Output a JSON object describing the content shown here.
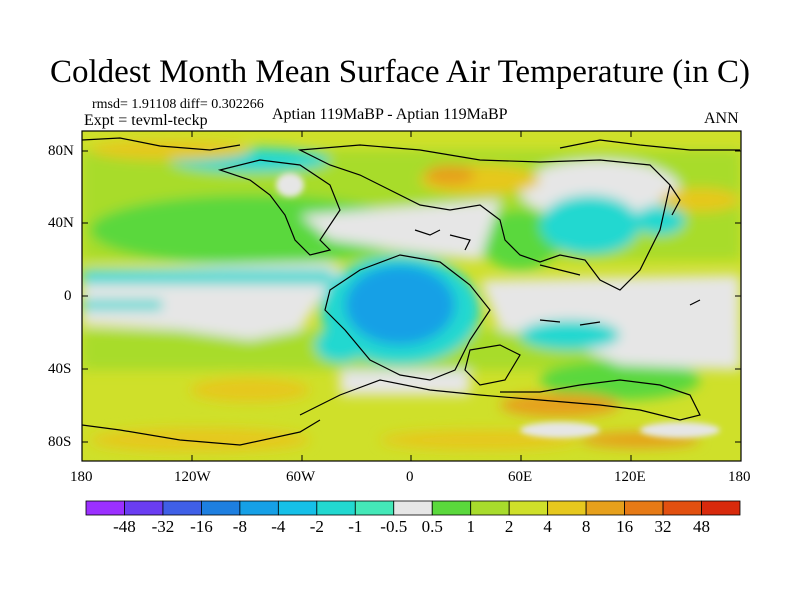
{
  "header": {
    "title": "Coldest Month Mean Surface Air Temperature (in C)",
    "stats": "rmsd= 1.91108 diff= 0.302266",
    "expt": "Expt = tevml-teckp",
    "comparison": "Aptian   119MaBP - Aptian   119MaBP",
    "period": "ANN"
  },
  "map": {
    "y_ticks": [
      "80N",
      "40N",
      "0",
      "40S",
      "80S"
    ],
    "x_ticks": [
      "180",
      "120W",
      "60W",
      "0",
      "60E",
      "120E",
      "180"
    ]
  },
  "colorbar": {
    "colors": [
      "#9b30ff",
      "#6a3df2",
      "#3f5fe6",
      "#1e7fe0",
      "#16a0e6",
      "#16c0e8",
      "#22d8d0",
      "#44e8b8",
      "#e6e6e6",
      "#5ad83c",
      "#a8dc2c",
      "#cfe02a",
      "#e6c81e",
      "#e6a01c",
      "#e67a16",
      "#e25010",
      "#d82a0c"
    ],
    "labels": [
      "-48",
      "-32",
      "-16",
      "-8",
      "-4",
      "-2",
      "-1",
      "-0.5",
      "0.5",
      "1",
      "2",
      "4",
      "8",
      "16",
      "32",
      "48"
    ]
  }
}
